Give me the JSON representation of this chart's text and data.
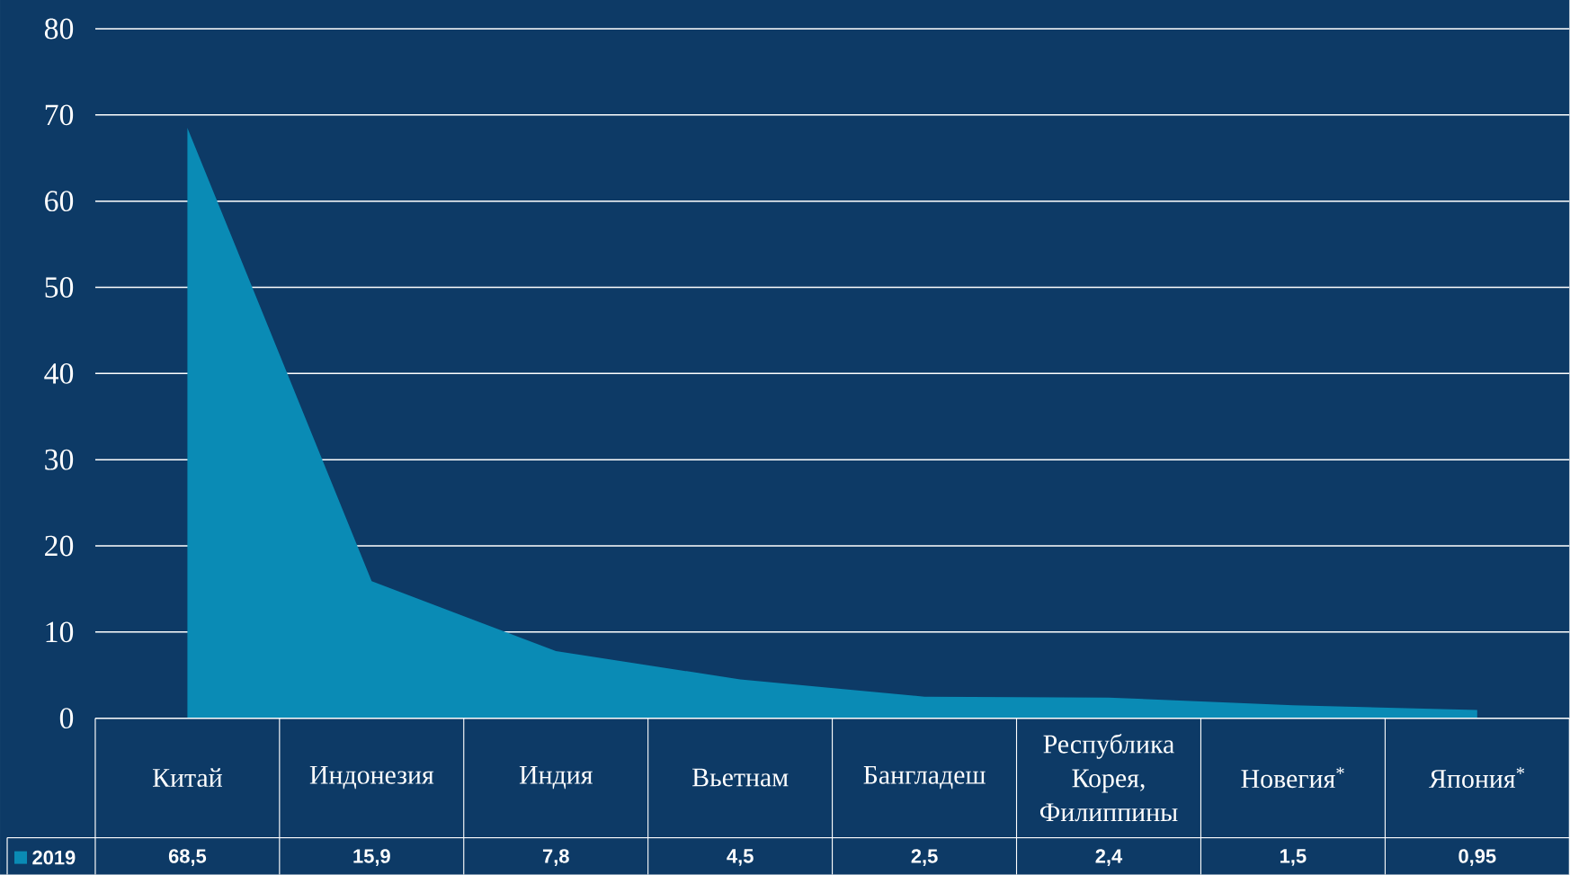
{
  "chart_data": {
    "type": "area",
    "categories": [
      "Китай",
      "Индонезия",
      "Индия",
      "Вьетнам",
      "Бангладеш",
      "Республика Корея, Филиппины",
      "Новегия$^{*}$",
      "Япония$^{*}$"
    ],
    "series": [
      {
        "name": "2019",
        "color": "#0a8bb5",
        "values": [
          68.5,
          15.9,
          7.8,
          4.5,
          2.5,
          2.4,
          1.5,
          0.95
        ]
      }
    ],
    "value_labels": [
      "68,5",
      "15,9",
      "7,8",
      "4,5",
      "2,5",
      "2,4",
      "1,5",
      "0,95"
    ],
    "ylim": [
      0,
      80
    ],
    "yticks": [
      0,
      10,
      20,
      30,
      40,
      50,
      60,
      70,
      80
    ],
    "grid": "y",
    "legend": "bottom left"
  }
}
